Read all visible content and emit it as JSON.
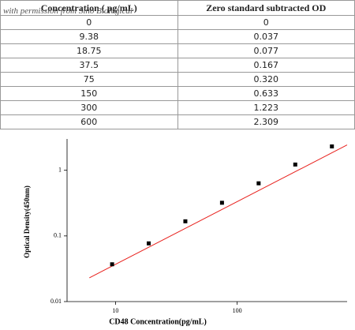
{
  "table": {
    "header": [
      "Concentration ( pg/mL)",
      "Zero standard subtracted OD"
    ],
    "rows": [
      [
        "0",
        "0"
      ],
      [
        "9.38",
        "0.037"
      ],
      [
        "18.75",
        "0.077"
      ],
      [
        "37.5",
        "0.167"
      ],
      [
        "75",
        "0.320"
      ],
      [
        "150",
        "0.633"
      ],
      [
        "300",
        "1.223"
      ],
      [
        "600",
        "2.309"
      ]
    ],
    "watermark": "with permission from Sino Biological"
  },
  "chart_data": {
    "type": "scatter",
    "x_label": "CD48 Concentration(pg/mL)",
    "y_label": "Optical Density(450nm)",
    "x": [
      9.38,
      18.75,
      37.5,
      75,
      150,
      300,
      600
    ],
    "values": [
      0.037,
      0.077,
      0.167,
      0.32,
      0.633,
      1.223,
      2.309
    ],
    "color": "#000000",
    "xlim": [
      4,
      800
    ],
    "ylim": [
      0.01,
      3
    ],
    "xticks": [
      10,
      100
    ],
    "yticks": [
      0.01,
      0.1,
      1
    ],
    "log_x": true,
    "log_y": true,
    "fit": {
      "x": [
        6.1,
        800
      ],
      "values": [
        0.023,
        2.43
      ],
      "color": "#e8211d"
    }
  }
}
